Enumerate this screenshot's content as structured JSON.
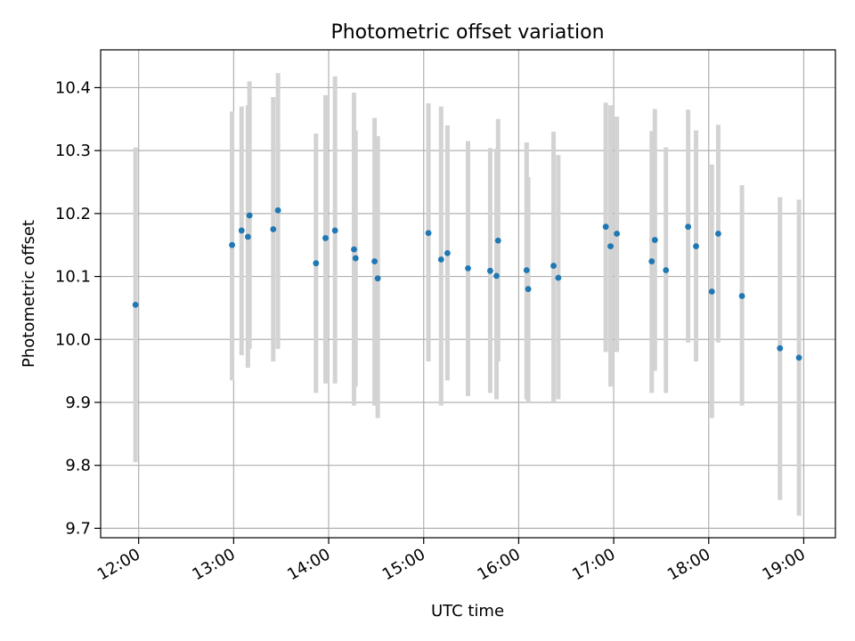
{
  "chart_data": {
    "type": "scatter",
    "title": "Photometric offset variation",
    "xlabel": "UTC time",
    "ylabel": "Photometric offset",
    "xlim": [
      "11:36",
      "19:20"
    ],
    "ylim": [
      9.685,
      10.46
    ],
    "xticks": [
      "12:00",
      "13:00",
      "14:00",
      "15:00",
      "16:00",
      "17:00",
      "18:00",
      "19:00"
    ],
    "yticks": [
      9.7,
      9.8,
      9.9,
      10.0,
      10.1,
      10.2,
      10.3,
      10.4
    ],
    "ytick_labels": [
      "9.7",
      "9.8",
      "9.9",
      "10.0",
      "10.1",
      "10.2",
      "10.3",
      "10.4"
    ],
    "grid": true,
    "legend": "none",
    "colors": {
      "points": "#1f77b4",
      "error_bars": "#d3d3d3",
      "grid": "#b0b0b0"
    },
    "series": [
      {
        "x": [
          "11:58",
          "12:59",
          "13:05",
          "13:09",
          "13:10",
          "13:25",
          "13:28",
          "13:52",
          "13:58",
          "14:04",
          "14:16",
          "14:17",
          "14:29",
          "14:31",
          "15:03",
          "15:11",
          "15:15",
          "15:28",
          "15:42",
          "15:46",
          "15:47",
          "16:05",
          "16:06",
          "16:22",
          "16:25",
          "16:55",
          "16:58",
          "17:02",
          "17:24",
          "17:26",
          "17:33",
          "17:47",
          "17:52",
          "18:02",
          "18:06",
          "18:21",
          "18:45",
          "18:57"
        ],
        "y": [
          10.055,
          10.15,
          10.173,
          10.163,
          10.197,
          10.175,
          10.205,
          10.121,
          10.161,
          10.173,
          10.143,
          10.129,
          10.124,
          10.097,
          10.169,
          10.127,
          10.137,
          10.113,
          10.109,
          10.101,
          10.157,
          10.11,
          10.08,
          10.117,
          10.098,
          10.179,
          10.148,
          10.168,
          10.124,
          10.158,
          10.11,
          10.179,
          10.148,
          10.076,
          10.168,
          10.069,
          9.986,
          9.971
        ],
        "y_low": [
          9.805,
          9.935,
          9.975,
          9.955,
          9.985,
          9.965,
          9.985,
          9.915,
          9.93,
          9.93,
          9.895,
          9.925,
          9.895,
          9.875,
          9.965,
          9.895,
          9.935,
          9.91,
          9.915,
          9.905,
          9.965,
          9.905,
          9.9,
          9.9,
          9.905,
          9.98,
          9.925,
          9.98,
          9.915,
          9.95,
          9.915,
          9.995,
          9.965,
          9.875,
          9.995,
          9.895,
          9.745,
          9.72
        ],
        "y_high": [
          10.305,
          10.362,
          10.37,
          10.372,
          10.41,
          10.385,
          10.423,
          10.327,
          10.388,
          10.418,
          10.392,
          10.332,
          10.352,
          10.323,
          10.375,
          10.37,
          10.34,
          10.315,
          10.304,
          10.303,
          10.35,
          10.313,
          10.258,
          10.33,
          10.293,
          10.376,
          10.372,
          10.354,
          10.331,
          10.366,
          10.305,
          10.365,
          10.332,
          10.278,
          10.341,
          10.245,
          10.226,
          10.222
        ]
      }
    ]
  }
}
